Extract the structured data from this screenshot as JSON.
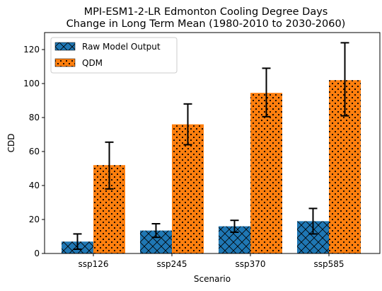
{
  "chart_data": {
    "type": "bar",
    "title_line1": "MPI-ESM1-2-LR Edmonton Cooling Degree Days",
    "title_line2": "Change in Long Term Mean (1980-2010 to 2030-2060)",
    "xlabel": "Scenario",
    "ylabel": "CDD",
    "categories": [
      "ssp126",
      "ssp245",
      "ssp370",
      "ssp585"
    ],
    "ylim": [
      0,
      130
    ],
    "yticks": [
      0,
      20,
      40,
      60,
      80,
      100,
      120
    ],
    "legend_position": "top-left",
    "grid": false,
    "series": [
      {
        "name": "Raw Model Output",
        "color": "#1f77b4",
        "hatch": "cross-hatch",
        "values": [
          7,
          13.5,
          16,
          19
        ],
        "err_low": [
          2.5,
          9.5,
          12.5,
          11.5
        ],
        "err_high": [
          11.5,
          17.5,
          19.5,
          26.5
        ]
      },
      {
        "name": "QDM",
        "color": "#ff7f0e",
        "hatch": "dots",
        "values": [
          52,
          76,
          94.5,
          102
        ],
        "err_low": [
          38,
          64,
          80.5,
          81
        ],
        "err_high": [
          65.5,
          88,
          109,
          124
        ]
      }
    ]
  }
}
